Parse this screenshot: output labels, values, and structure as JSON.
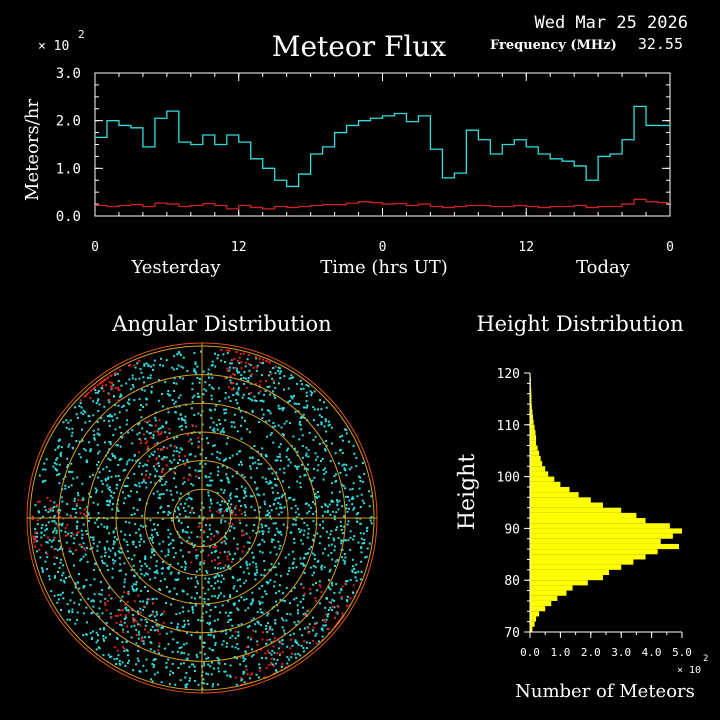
{
  "header": {
    "date": "Wed Mar 25 2026",
    "title": "Meteor Flux",
    "frequency_label": "Frequency (MHz)",
    "frequency_value": "32.55",
    "scale_multiplier": "× 10",
    "scale_exponent": "2"
  },
  "colors": {
    "background": "#000000",
    "axes": "#ffffff",
    "flux_total": "#33dddd",
    "flux_other": "#cc2222",
    "polar_rings": "#d4a020",
    "polar_outer": "#e05020",
    "polar_points_main": "#33dddd",
    "polar_points_alt": "#dd2222",
    "histogram": "#ffff00"
  },
  "chart_data": [
    {
      "type": "line",
      "title": "Meteor Flux",
      "ylabel": "Meteors/hr",
      "xlabel": "Time (hrs UT)",
      "x_group_labels": [
        "Yesterday",
        "Today"
      ],
      "y_multiplier": "× 10^2",
      "ylim": [
        0,
        3.0
      ],
      "yticks": [
        "0.0",
        "1.0",
        "2.0",
        "3.0"
      ],
      "xlim": [
        0,
        48
      ],
      "xticks": [
        {
          "x": 0,
          "label": "0"
        },
        {
          "x": 12,
          "label": "12"
        },
        {
          "x": 24,
          "label": "0"
        },
        {
          "x": 36,
          "label": "12"
        },
        {
          "x": 48,
          "label": "0"
        }
      ],
      "step": true,
      "series": [
        {
          "color_key": "flux_total",
          "x": [
            0,
            1,
            2,
            3,
            4,
            5,
            6,
            7,
            8,
            9,
            10,
            11,
            12,
            13,
            14,
            15,
            16,
            17,
            18,
            19,
            20,
            21,
            22,
            23,
            24,
            25,
            26,
            27,
            28,
            29,
            30,
            31,
            32,
            33,
            34,
            35,
            36,
            37,
            38,
            39,
            40,
            41,
            42,
            43,
            44,
            45,
            46,
            47
          ],
          "values": [
            1.65,
            2.0,
            1.9,
            1.85,
            1.45,
            2.05,
            2.2,
            1.55,
            1.5,
            1.7,
            1.5,
            1.7,
            1.55,
            1.2,
            1.0,
            0.75,
            0.62,
            0.88,
            1.3,
            1.45,
            1.75,
            1.9,
            2.0,
            2.05,
            2.1,
            2.15,
            1.98,
            2.1,
            1.4,
            0.8,
            0.9,
            1.8,
            1.6,
            1.3,
            1.5,
            1.6,
            1.45,
            1.3,
            1.2,
            1.15,
            1.05,
            0.75,
            1.25,
            1.3,
            1.6,
            2.3,
            1.9,
            1.9
          ]
        },
        {
          "color_key": "flux_other",
          "x": [
            0,
            1,
            2,
            3,
            4,
            5,
            6,
            7,
            8,
            9,
            10,
            11,
            12,
            13,
            14,
            15,
            16,
            17,
            18,
            19,
            20,
            21,
            22,
            23,
            24,
            25,
            26,
            27,
            28,
            29,
            30,
            31,
            32,
            33,
            34,
            35,
            36,
            37,
            38,
            39,
            40,
            41,
            42,
            43,
            44,
            45,
            46,
            47
          ],
          "values": [
            0.22,
            0.2,
            0.22,
            0.24,
            0.2,
            0.27,
            0.25,
            0.2,
            0.22,
            0.26,
            0.22,
            0.15,
            0.22,
            0.18,
            0.15,
            0.2,
            0.18,
            0.2,
            0.22,
            0.24,
            0.24,
            0.27,
            0.3,
            0.28,
            0.25,
            0.26,
            0.22,
            0.25,
            0.2,
            0.18,
            0.2,
            0.22,
            0.22,
            0.2,
            0.2,
            0.22,
            0.2,
            0.18,
            0.2,
            0.2,
            0.22,
            0.18,
            0.2,
            0.2,
            0.25,
            0.35,
            0.3,
            0.28
          ]
        }
      ]
    },
    {
      "type": "scatter",
      "title": "Angular Distribution",
      "projection": "polar",
      "rings": 6,
      "radial_lines": 4
    },
    {
      "type": "bar",
      "orientation": "horizontal",
      "title": "Height Distribution",
      "ylabel": "Height",
      "xlabel": "Number of Meteors",
      "x_multiplier": "× 10^2",
      "ylim": [
        70,
        120
      ],
      "yticks": [
        "70",
        "80",
        "90",
        "100",
        "110",
        "120"
      ],
      "xlim": [
        0,
        5.0
      ],
      "xticks": [
        "0.0",
        "1.0",
        "2.0",
        "3.0",
        "4.0",
        "5.0"
      ],
      "bin_width": 1,
      "heights": [
        70,
        71,
        72,
        73,
        74,
        75,
        76,
        77,
        78,
        79,
        80,
        81,
        82,
        83,
        84,
        85,
        86,
        87,
        88,
        89,
        90,
        91,
        92,
        93,
        94,
        95,
        96,
        97,
        98,
        99,
        100,
        101,
        102,
        103,
        104,
        105,
        106,
        107,
        108,
        109,
        110,
        111,
        112,
        113,
        114,
        115,
        116,
        117,
        118,
        119
      ],
      "values": [
        0.08,
        0.15,
        0.2,
        0.3,
        0.5,
        0.7,
        0.9,
        1.2,
        1.4,
        1.9,
        2.4,
        2.6,
        3.0,
        3.4,
        3.8,
        4.2,
        4.9,
        4.3,
        4.7,
        5.0,
        4.6,
        3.8,
        3.5,
        3.0,
        2.4,
        2.0,
        1.6,
        1.3,
        1.0,
        0.8,
        0.6,
        0.5,
        0.4,
        0.35,
        0.3,
        0.25,
        0.2,
        0.2,
        0.18,
        0.15,
        0.12,
        0.1,
        0.08,
        0.06,
        0.05,
        0.05,
        0.04,
        0.03,
        0.03,
        0.02
      ]
    }
  ]
}
